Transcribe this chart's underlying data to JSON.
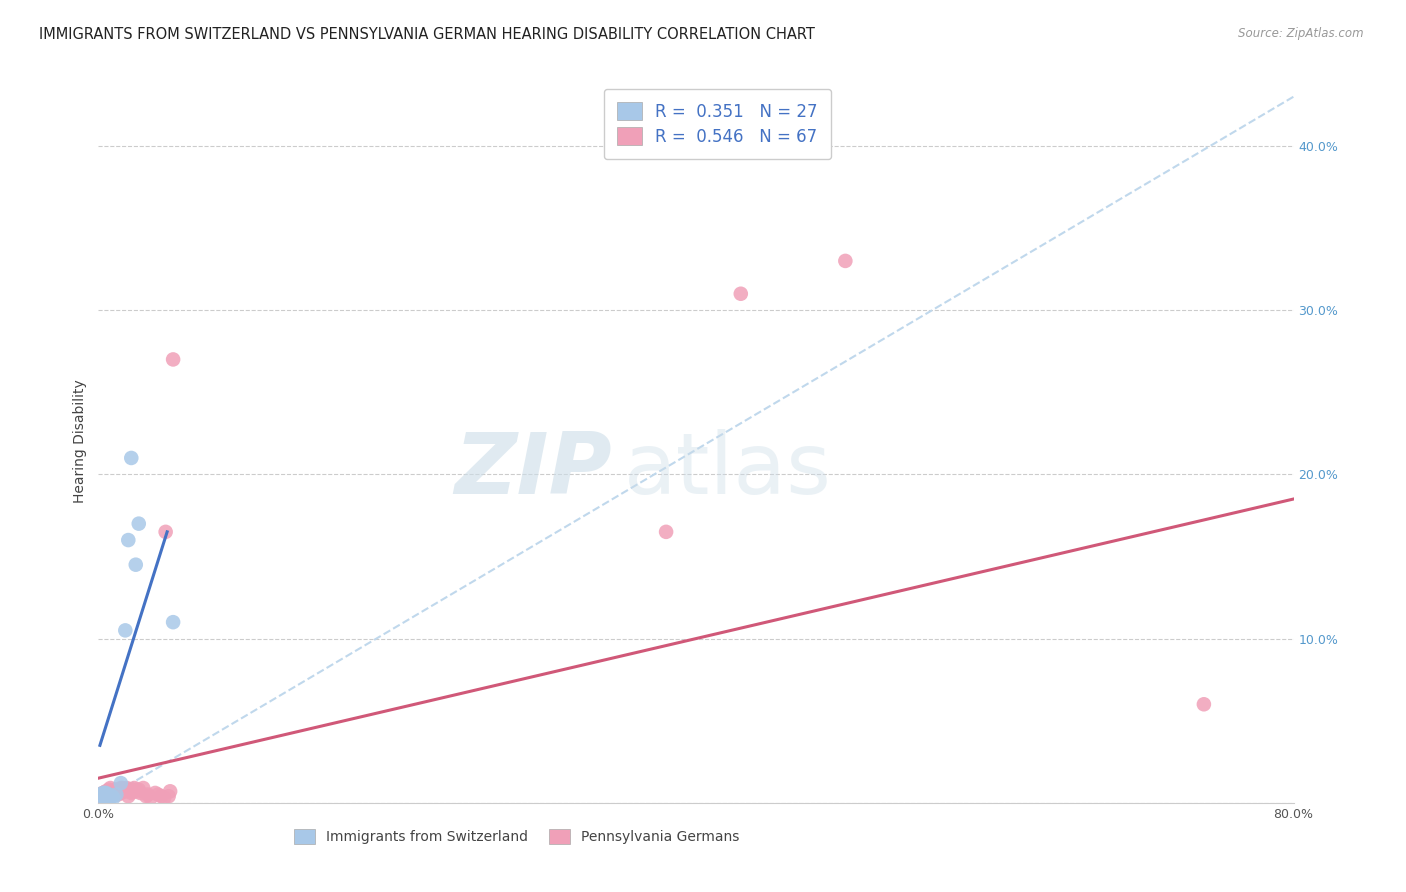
{
  "title": "IMMIGRANTS FROM SWITZERLAND VS PENNSYLVANIA GERMAN HEARING DISABILITY CORRELATION CHART",
  "source": "Source: ZipAtlas.com",
  "ylabel": "Hearing Disability",
  "xlim": [
    0.0,
    0.8
  ],
  "ylim": [
    0.0,
    0.44
  ],
  "xticks": [
    0.0,
    0.1,
    0.2,
    0.3,
    0.4,
    0.5,
    0.6,
    0.7,
    0.8
  ],
  "xticklabels": [
    "0.0%",
    "",
    "",
    "",
    "",
    "",
    "",
    "",
    "80.0%"
  ],
  "yticks": [
    0.0,
    0.1,
    0.2,
    0.3,
    0.4
  ],
  "yticklabels": [
    "",
    "10.0%",
    "20.0%",
    "30.0%",
    "40.0%"
  ],
  "watermark_zip": "ZIP",
  "watermark_atlas": "atlas",
  "blue_color": "#a8c8e8",
  "pink_color": "#f0a0b8",
  "blue_line_color": "#4472c4",
  "pink_line_color": "#d05878",
  "dashed_line_color": "#c0d8ec",
  "blue_scatter": [
    [
      0.001,
      0.005
    ],
    [
      0.002,
      0.005
    ],
    [
      0.002,
      0.004
    ],
    [
      0.003,
      0.005
    ],
    [
      0.003,
      0.006
    ],
    [
      0.003,
      0.004
    ],
    [
      0.004,
      0.005
    ],
    [
      0.004,
      0.003
    ],
    [
      0.004,
      0.006
    ],
    [
      0.005,
      0.005
    ],
    [
      0.005,
      0.004
    ],
    [
      0.005,
      0.006
    ],
    [
      0.006,
      0.005
    ],
    [
      0.006,
      0.003
    ],
    [
      0.007,
      0.005
    ],
    [
      0.007,
      0.004
    ],
    [
      0.008,
      0.003
    ],
    [
      0.009,
      0.004
    ],
    [
      0.01,
      0.003
    ],
    [
      0.012,
      0.005
    ],
    [
      0.015,
      0.012
    ],
    [
      0.018,
      0.105
    ],
    [
      0.02,
      0.16
    ],
    [
      0.022,
      0.21
    ],
    [
      0.025,
      0.145
    ],
    [
      0.027,
      0.17
    ],
    [
      0.05,
      0.11
    ]
  ],
  "pink_scatter": [
    [
      0.001,
      0.005
    ],
    [
      0.002,
      0.004
    ],
    [
      0.002,
      0.005
    ],
    [
      0.003,
      0.005
    ],
    [
      0.003,
      0.004
    ],
    [
      0.003,
      0.006
    ],
    [
      0.004,
      0.005
    ],
    [
      0.004,
      0.006
    ],
    [
      0.004,
      0.004
    ],
    [
      0.005,
      0.005
    ],
    [
      0.005,
      0.006
    ],
    [
      0.005,
      0.004
    ],
    [
      0.005,
      0.007
    ],
    [
      0.006,
      0.005
    ],
    [
      0.006,
      0.006
    ],
    [
      0.006,
      0.004
    ],
    [
      0.007,
      0.005
    ],
    [
      0.007,
      0.006
    ],
    [
      0.007,
      0.007
    ],
    [
      0.007,
      0.008
    ],
    [
      0.008,
      0.006
    ],
    [
      0.008,
      0.007
    ],
    [
      0.008,
      0.009
    ],
    [
      0.009,
      0.006
    ],
    [
      0.009,
      0.007
    ],
    [
      0.009,
      0.004
    ],
    [
      0.01,
      0.006
    ],
    [
      0.01,
      0.007
    ],
    [
      0.011,
      0.005
    ],
    [
      0.011,
      0.008
    ],
    [
      0.012,
      0.006
    ],
    [
      0.012,
      0.008
    ],
    [
      0.013,
      0.007
    ],
    [
      0.013,
      0.005
    ],
    [
      0.014,
      0.007
    ],
    [
      0.014,
      0.008
    ],
    [
      0.015,
      0.009
    ],
    [
      0.015,
      0.006
    ],
    [
      0.016,
      0.008
    ],
    [
      0.016,
      0.009
    ],
    [
      0.017,
      0.007
    ],
    [
      0.018,
      0.008
    ],
    [
      0.018,
      0.007
    ],
    [
      0.019,
      0.009
    ],
    [
      0.02,
      0.008
    ],
    [
      0.02,
      0.004
    ],
    [
      0.021,
      0.007
    ],
    [
      0.022,
      0.008
    ],
    [
      0.022,
      0.006
    ],
    [
      0.023,
      0.007
    ],
    [
      0.024,
      0.009
    ],
    [
      0.025,
      0.008
    ],
    [
      0.026,
      0.007
    ],
    [
      0.027,
      0.008
    ],
    [
      0.028,
      0.006
    ],
    [
      0.03,
      0.009
    ],
    [
      0.032,
      0.004
    ],
    [
      0.033,
      0.005
    ],
    [
      0.035,
      0.003
    ],
    [
      0.038,
      0.006
    ],
    [
      0.04,
      0.005
    ],
    [
      0.042,
      0.004
    ],
    [
      0.044,
      0.003
    ],
    [
      0.047,
      0.004
    ],
    [
      0.048,
      0.007
    ],
    [
      0.05,
      0.27
    ],
    [
      0.045,
      0.165
    ],
    [
      0.38,
      0.165
    ],
    [
      0.43,
      0.31
    ],
    [
      0.5,
      0.33
    ],
    [
      0.74,
      0.06
    ]
  ],
  "blue_trendline_x": [
    0.001,
    0.046
  ],
  "blue_trend_y": [
    0.035,
    0.165
  ],
  "pink_trendline_x": [
    0.0,
    0.8
  ],
  "pink_trend_y": [
    0.015,
    0.185
  ],
  "dashed_line_x": [
    0.0,
    0.8
  ],
  "dashed_line_y": [
    0.0,
    0.43
  ],
  "title_fontsize": 10.5,
  "tick_fontsize": 9,
  "background_color": "#ffffff"
}
